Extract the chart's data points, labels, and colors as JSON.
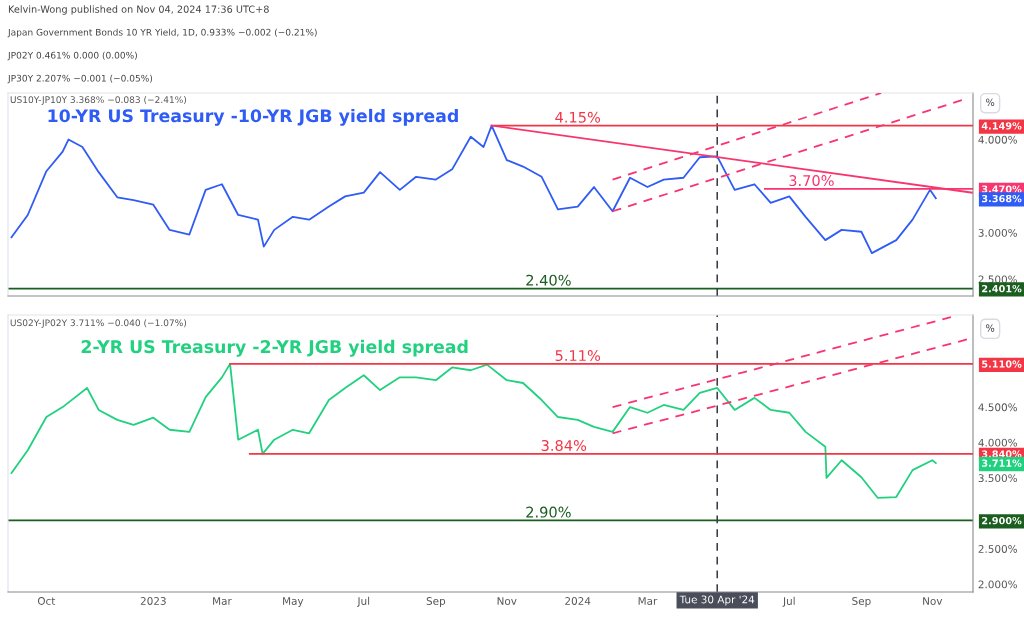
{
  "chart_data": [
    {
      "type": "line",
      "title": "10-YR US Treasury -10-YR JGB yield spread",
      "subtitle": "US10Y-JP10Y 3.368% −0.083 (−2.41%)",
      "ylabel": "%",
      "tick_labels": "y",
      "annotations": [
        "Kelvin-Wong published on Nov 04, 2024 17:36 UTC+8",
        "Japan Government Bonds 10 YR Yield, 1D, 0.933% −0.002 (−0.21%)",
        "JP02Y 0.461% 0.000 (0.00%)",
        "JP30Y 2.207% −0.001 (−0.05%)",
        {
          "text": "4.15%",
          "x": "2024-01-01",
          "y": 4.15
        },
        {
          "text": "3.70%",
          "x": "2024-07-20",
          "y": 3.47
        }
      ],
      "xlim": [
        "2022-08-29",
        "2024-12-06"
      ],
      "xticks": [
        {
          "value": "2022-10-01",
          "label": null
        },
        {
          "value": "2023-01-01",
          "label": null
        },
        {
          "value": "2023-03-01",
          "label": null
        },
        {
          "value": "2023-05-01",
          "label": null
        },
        {
          "value": "2023-07-01",
          "label": null
        },
        {
          "value": "2023-09-01",
          "label": null
        },
        {
          "value": "2023-11-01",
          "label": null
        },
        {
          "value": "2024-01-01",
          "label": null
        },
        {
          "value": "2024-03-01",
          "label": null
        },
        {
          "value": "2024-07-01",
          "label": null
        },
        {
          "value": "2024-09-01",
          "label": null
        },
        {
          "value": "2024-11-01",
          "label": null
        }
      ],
      "ylim": [
        2.32,
        4.5
      ],
      "yticks": [
        {
          "value": 2.5,
          "label": "2.500%"
        },
        {
          "value": 3.0,
          "label": "3.000%"
        },
        {
          "value": 4.0,
          "label": "4.000%"
        }
      ],
      "y2lim": [
        2.32,
        4.5
      ],
      "y2ticks": [
        {
          "value": 4.149,
          "label": "4.149%"
        },
        {
          "value": 3.47,
          "label": "3.470%"
        },
        {
          "value": 3.368,
          "label": "3.368%"
        },
        {
          "value": 2.401,
          "label": "2.401%"
        }
      ],
      "ref_lines": [
        {
          "axis": "y",
          "value": 2.4,
          "label": "2.40%",
          "color": "#1b5e20",
          "line_style": "solid"
        },
        {
          "axis": "x",
          "value": "2024-04-30",
          "color": "#363a45",
          "line_style": "dashed"
        }
      ],
      "series": [
        {
          "color": "#2f5cf5",
          "line_style": "solid",
          "x": [
            "2022-09-01",
            "2022-09-15",
            "2022-10-01",
            "2022-10-15",
            "2022-10-20",
            "2022-11-01",
            "2022-11-15",
            "2022-12-01",
            "2022-12-15",
            "2023-01-01",
            "2023-01-15",
            "2023-02-01",
            "2023-02-15",
            "2023-03-01",
            "2023-03-15",
            "2023-04-01",
            "2023-04-06",
            "2023-04-15",
            "2023-05-01",
            "2023-05-15",
            "2023-06-01",
            "2023-06-15",
            "2023-07-01",
            "2023-07-15",
            "2023-08-01",
            "2023-08-15",
            "2023-09-01",
            "2023-09-15",
            "2023-10-01",
            "2023-10-12",
            "2023-10-19",
            "2023-11-01",
            "2023-11-15",
            "2023-12-01",
            "2023-12-15",
            "2024-01-01",
            "2024-01-15",
            "2024-01-31",
            "2024-02-15",
            "2024-03-01",
            "2024-03-15",
            "2024-04-01",
            "2024-04-15",
            "2024-04-30",
            "2024-05-15",
            "2024-06-01",
            "2024-06-15",
            "2024-07-01",
            "2024-07-15",
            "2024-08-01",
            "2024-08-15",
            "2024-09-01",
            "2024-09-10",
            "2024-10-01",
            "2024-10-15",
            "2024-10-30",
            "2024-11-04"
          ],
          "values": [
            2.95,
            3.19,
            3.66,
            3.87,
            4.0,
            3.92,
            3.65,
            3.38,
            3.35,
            3.3,
            3.03,
            2.98,
            3.46,
            3.52,
            3.19,
            3.14,
            2.85,
            3.03,
            3.17,
            3.14,
            3.28,
            3.39,
            3.43,
            3.65,
            3.46,
            3.6,
            3.57,
            3.68,
            4.03,
            3.92,
            4.15,
            3.78,
            3.71,
            3.6,
            3.25,
            3.28,
            3.49,
            3.23,
            3.59,
            3.49,
            3.57,
            3.59,
            3.81,
            3.82,
            3.46,
            3.52,
            3.32,
            3.39,
            3.17,
            2.92,
            3.03,
            3.01,
            2.78,
            2.92,
            3.14,
            3.46,
            3.37
          ]
        },
        {
          "color": "#f23645",
          "line_style": "solid",
          "x": [
            "2023-10-19",
            "2024-12-06"
          ],
          "values": [
            4.15,
            4.15
          ]
        },
        {
          "color": "#f7356e",
          "line_style": "solid",
          "x": [
            "2023-10-19",
            "2024-12-05"
          ],
          "values": [
            4.15,
            3.43
          ]
        },
        {
          "color": "#f7356e",
          "line_style": "solid",
          "x": [
            "2024-06-10",
            "2024-12-06"
          ],
          "values": [
            3.47,
            3.47
          ]
        },
        {
          "color": "#f7356e",
          "line_style": "dashed",
          "x": [
            "2024-01-31",
            "2024-09-18"
          ],
          "values": [
            3.57,
            4.5
          ]
        },
        {
          "color": "#f7356e",
          "line_style": "dashed",
          "x": [
            "2024-01-31",
            "2024-11-28"
          ],
          "values": [
            3.23,
            4.43
          ]
        }
      ]
    },
    {
      "type": "line",
      "title": "2-YR US Treasury -2-YR JGB yield spread",
      "subtitle": "US02Y-JP02Y 3.711% −0.040 (−1.07%)",
      "ylabel": "%",
      "annotations": [
        {
          "text": "5.11%",
          "x": "2024-01-01",
          "y": 5.11
        },
        {
          "text": "3.84%",
          "x": "2023-12-20",
          "y": 3.84
        }
      ],
      "xlim": [
        "2022-08-29",
        "2024-12-06"
      ],
      "xticks": [
        {
          "value": "2022-10-01",
          "label": "Oct"
        },
        {
          "value": "2023-01-01",
          "label": "2023"
        },
        {
          "value": "2023-03-01",
          "label": "Mar"
        },
        {
          "value": "2023-05-01",
          "label": "May"
        },
        {
          "value": "2023-07-01",
          "label": "Jul"
        },
        {
          "value": "2023-09-01",
          "label": "Sep"
        },
        {
          "value": "2023-11-01",
          "label": "Nov"
        },
        {
          "value": "2024-01-01",
          "label": "2024"
        },
        {
          "value": "2024-03-01",
          "label": "Mar"
        },
        {
          "value": "2024-07-01",
          "label": "Jul"
        },
        {
          "value": "2024-09-01",
          "label": "Sep"
        },
        {
          "value": "2024-11-01",
          "label": "Nov"
        }
      ],
      "ylim": [
        1.89,
        5.8
      ],
      "yticks": [
        {
          "value": 2.0,
          "label": "2.000%"
        },
        {
          "value": 2.5,
          "label": "2.500%"
        },
        {
          "value": 3.5,
          "label": "3.500%"
        },
        {
          "value": 4.0,
          "label": "4.000%"
        },
        {
          "value": 4.5,
          "label": "4.500%"
        }
      ],
      "y2lim": [
        1.89,
        5.8
      ],
      "y2ticks": [
        {
          "value": 5.11,
          "label": "5.110%"
        },
        {
          "value": 3.84,
          "label": "3.840%"
        },
        {
          "value": 3.711,
          "label": "3.711%"
        },
        {
          "value": 2.9,
          "label": "2.900%"
        }
      ],
      "ref_lines": [
        {
          "axis": "y",
          "value": 2.9,
          "label": "2.90%",
          "color": "#1b5e20",
          "line_style": "solid"
        },
        {
          "axis": "x",
          "value": "2024-04-30",
          "label": "Tue 30 Apr '24",
          "color": "#363a45",
          "line_style": "dashed"
        }
      ],
      "series": [
        {
          "color": "#22d17f",
          "line_style": "solid",
          "x": [
            "2022-09-01",
            "2022-09-15",
            "2022-10-01",
            "2022-10-15",
            "2022-11-05",
            "2022-11-15",
            "2022-12-01",
            "2022-12-15",
            "2023-01-01",
            "2023-01-15",
            "2023-02-01",
            "2023-02-15",
            "2023-03-01",
            "2023-03-08",
            "2023-03-15",
            "2023-04-01",
            "2023-04-05",
            "2023-04-15",
            "2023-05-01",
            "2023-05-15",
            "2023-06-01",
            "2023-06-15",
            "2023-07-01",
            "2023-07-15",
            "2023-08-01",
            "2023-08-15",
            "2023-09-01",
            "2023-09-15",
            "2023-10-01",
            "2023-10-15",
            "2023-11-01",
            "2023-11-15",
            "2023-12-01",
            "2023-12-15",
            "2024-01-01",
            "2024-01-15",
            "2024-01-31",
            "2024-02-15",
            "2024-03-01",
            "2024-03-15",
            "2024-04-01",
            "2024-04-15",
            "2024-04-30",
            "2024-05-15",
            "2024-06-01",
            "2024-06-15",
            "2024-07-01",
            "2024-07-15",
            "2024-08-01",
            "2024-08-02",
            "2024-08-15",
            "2024-09-01",
            "2024-09-15",
            "2024-10-01",
            "2024-10-15",
            "2024-11-01",
            "2024-11-04"
          ],
          "values": [
            3.57,
            3.89,
            4.36,
            4.5,
            4.77,
            4.46,
            4.32,
            4.25,
            4.35,
            4.18,
            4.15,
            4.64,
            4.92,
            5.11,
            4.04,
            4.18,
            3.84,
            4.04,
            4.18,
            4.13,
            4.6,
            4.77,
            4.95,
            4.74,
            4.92,
            4.92,
            4.88,
            5.06,
            5.02,
            5.1,
            4.88,
            4.84,
            4.6,
            4.36,
            4.32,
            4.22,
            4.15,
            4.5,
            4.42,
            4.53,
            4.46,
            4.7,
            4.77,
            4.46,
            4.63,
            4.46,
            4.42,
            4.15,
            3.94,
            3.5,
            3.75,
            3.51,
            3.22,
            3.23,
            3.61,
            3.75,
            3.71
          ]
        },
        {
          "color": "#f23645",
          "line_style": "solid",
          "x": [
            "2023-03-08",
            "2024-12-06"
          ],
          "values": [
            5.11,
            5.11
          ]
        },
        {
          "color": "#f23645",
          "line_style": "solid",
          "x": [
            "2023-03-25",
            "2024-12-06"
          ],
          "values": [
            3.84,
            3.84
          ]
        },
        {
          "color": "#f7356e",
          "line_style": "dashed",
          "x": [
            "2024-01-31",
            "2024-11-17"
          ],
          "values": [
            4.5,
            5.77
          ]
        },
        {
          "color": "#f7356e",
          "line_style": "dashed",
          "x": [
            "2024-01-31",
            "2024-12-02"
          ],
          "values": [
            4.13,
            5.46
          ]
        }
      ]
    }
  ]
}
